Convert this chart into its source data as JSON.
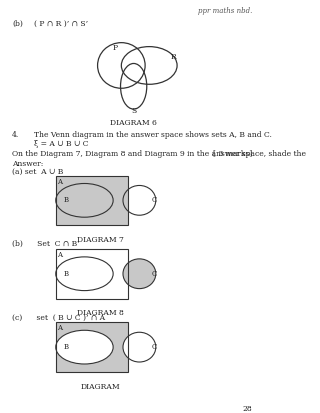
{
  "bg_color": "#ffffff",
  "page_number": "28",
  "header_text": "ppr maths nbd.",
  "part_b_label": "(b)",
  "part_b_text": "( P ∩ R )’ ∩ S’",
  "diagram6_label": "DIAGRAM 6",
  "q4_num": "4.",
  "q4_line1": "The Venn diagram in the answer space shows sets A, B and C.",
  "q4_line2": "ξ = A ∪ B ∪ C",
  "q4_line3": "On the Diagram 7, Diagram 8 and Diagram 9 in the answer space, shade the",
  "q4_marks": "[ 3 marks]",
  "answer_label": "Answer:",
  "ans_a_label": "(a) set  A ∪ B",
  "diagram7_label": "DIAGRAM 7",
  "ans_b_label": "(b)      Set  C ∩ B’",
  "diagram8_label": "DIAGRAM 8",
  "ans_c_label": "(c)      set  ( B ∪ C )’ ∩ A",
  "diagram9_label": "DIAGRAM"
}
